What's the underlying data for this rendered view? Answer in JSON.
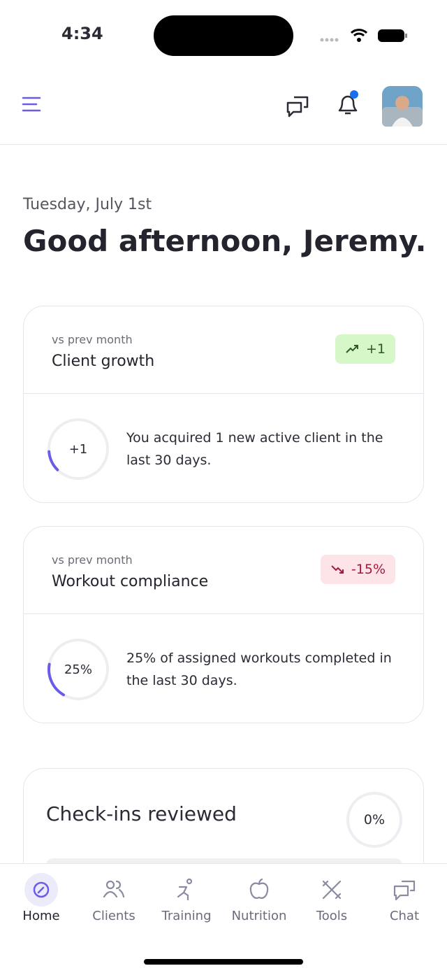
{
  "status_bar": {
    "time": "4:34"
  },
  "greeting": {
    "date": "Tuesday, July 1st",
    "title": "Good afternoon, Jeremy."
  },
  "cards": [
    {
      "subtitle": "vs prev month",
      "title": "Client growth",
      "badge": "+1",
      "ring_label": "+1",
      "description": "You acquired 1 new active client in the last 30 days."
    },
    {
      "subtitle": "vs prev month",
      "title": "Workout compliance",
      "badge": "-15%",
      "ring_label": "25%",
      "description": "25% of assigned workouts completed in the last 30 days."
    }
  ],
  "checkins": {
    "title": "Check-ins reviewed",
    "ring_label": "0%"
  },
  "nav": {
    "items": [
      "Home",
      "Clients",
      "Training",
      "Nutrition",
      "Tools",
      "Chat"
    ]
  }
}
